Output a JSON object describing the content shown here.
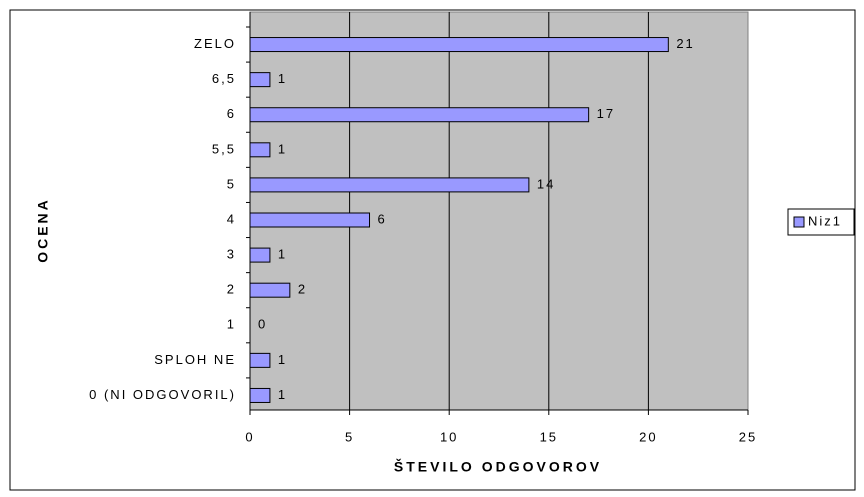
{
  "chart_data": {
    "type": "barh",
    "xlabel": "ŠTEVILO ODGOVOROV",
    "ylabel": "OCENA",
    "categories": [
      "ZELO",
      "6,5",
      "6",
      "5,5",
      "5",
      "4",
      "3",
      "2",
      "1",
      "SPLOH NE",
      "0 (NI ODGOVORIL)"
    ],
    "series": [
      {
        "name": "Niz1",
        "color": "#9999ff",
        "values": [
          21,
          1,
          17,
          1,
          14,
          6,
          1,
          2,
          0,
          1,
          1
        ]
      }
    ],
    "xlim": [
      0,
      25
    ],
    "xticks": [
      0,
      5,
      10,
      15,
      20,
      25
    ],
    "grid": true,
    "legend": "right",
    "background": "#c0c0c0"
  }
}
